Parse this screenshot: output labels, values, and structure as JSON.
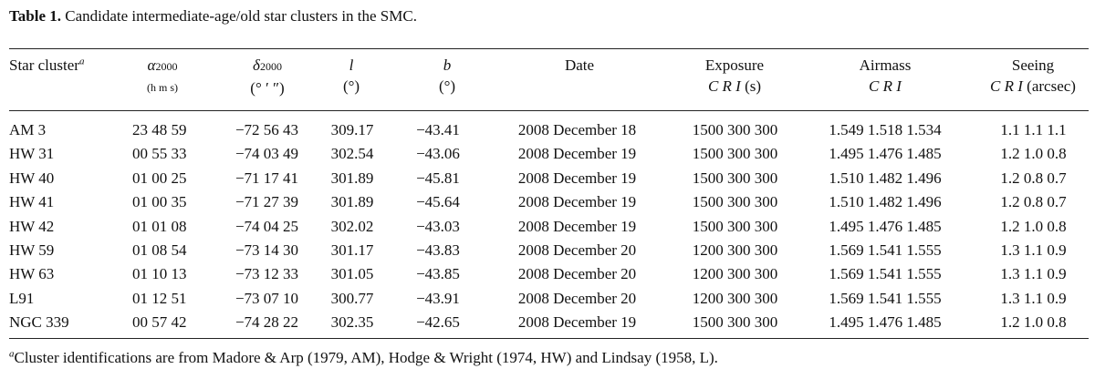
{
  "caption": {
    "label": "Table 1.",
    "text": "Candidate intermediate-age/old star clusters in the SMC."
  },
  "headers": {
    "cluster": "Star cluster",
    "cluster_note": "a",
    "ra": "α",
    "ra_sub": "2000",
    "ra_unit": "(h m s)",
    "dec": "δ",
    "dec_sub": "2000",
    "dec_unit": "(° ′ ″)",
    "l": "l",
    "l_unit": "(°)",
    "b": "b",
    "b_unit": "(°)",
    "date": "Date",
    "exposure": "Exposure",
    "exposure_bands": "C R I",
    "exposure_unit": "(s)",
    "airmass": "Airmass",
    "airmass_bands": "C R I",
    "seeing": "Seeing",
    "seeing_bands": "C R I",
    "seeing_unit": "(arcsec)"
  },
  "rows": [
    {
      "name": "AM 3",
      "ra": "23 48 59",
      "dec": "−72 56 43",
      "l": "309.17",
      "b": "−43.41",
      "date": "2008 December 18",
      "exposure": "1500 300 300",
      "airmass": "1.549 1.518 1.534",
      "seeing": "1.1 1.1 1.1"
    },
    {
      "name": "HW 31",
      "ra": "00 55 33",
      "dec": "−74 03 49",
      "l": "302.54",
      "b": "−43.06",
      "date": "2008 December 19",
      "exposure": "1500 300 300",
      "airmass": "1.495 1.476 1.485",
      "seeing": "1.2 1.0 0.8"
    },
    {
      "name": "HW 40",
      "ra": "01 00 25",
      "dec": "−71 17 41",
      "l": "301.89",
      "b": "−45.81",
      "date": "2008 December 19",
      "exposure": "1500 300 300",
      "airmass": "1.510 1.482 1.496",
      "seeing": "1.2 0.8 0.7"
    },
    {
      "name": "HW 41",
      "ra": "01 00 35",
      "dec": "−71 27 39",
      "l": "301.89",
      "b": "−45.64",
      "date": "2008 December 19",
      "exposure": "1500 300 300",
      "airmass": "1.510 1.482 1.496",
      "seeing": "1.2 0.8 0.7"
    },
    {
      "name": "HW 42",
      "ra": "01 01 08",
      "dec": "−74 04 25",
      "l": "302.02",
      "b": "−43.03",
      "date": "2008 December 19",
      "exposure": "1500 300 300",
      "airmass": "1.495 1.476 1.485",
      "seeing": "1.2 1.0 0.8"
    },
    {
      "name": "HW 59",
      "ra": "01 08 54",
      "dec": "−73 14 30",
      "l": "301.17",
      "b": "−43.83",
      "date": "2008 December 20",
      "exposure": "1200 300 300",
      "airmass": "1.569 1.541 1.555",
      "seeing": "1.3 1.1 0.9"
    },
    {
      "name": "HW 63",
      "ra": "01 10 13",
      "dec": "−73 12 33",
      "l": "301.05",
      "b": "−43.85",
      "date": "2008 December 20",
      "exposure": "1200 300 300",
      "airmass": "1.569 1.541 1.555",
      "seeing": "1.3 1.1 0.9"
    },
    {
      "name": "L91",
      "ra": "01 12 51",
      "dec": "−73 07 10",
      "l": "300.77",
      "b": "−43.91",
      "date": "2008 December 20",
      "exposure": "1200 300 300",
      "airmass": "1.569 1.541 1.555",
      "seeing": "1.3 1.1 0.9"
    },
    {
      "name": "NGC 339",
      "ra": "00 57 42",
      "dec": "−74 28 22",
      "l": "302.35",
      "b": "−42.65",
      "date": "2008 December 19",
      "exposure": "1500 300 300",
      "airmass": "1.495 1.476 1.485",
      "seeing": "1.2 1.0 0.8"
    }
  ],
  "footnote": {
    "mark": "a",
    "text": "Cluster identifications are from Madore & Arp (1979, AM), Hodge & Wright (1974, HW) and Lindsay (1958, L)."
  }
}
